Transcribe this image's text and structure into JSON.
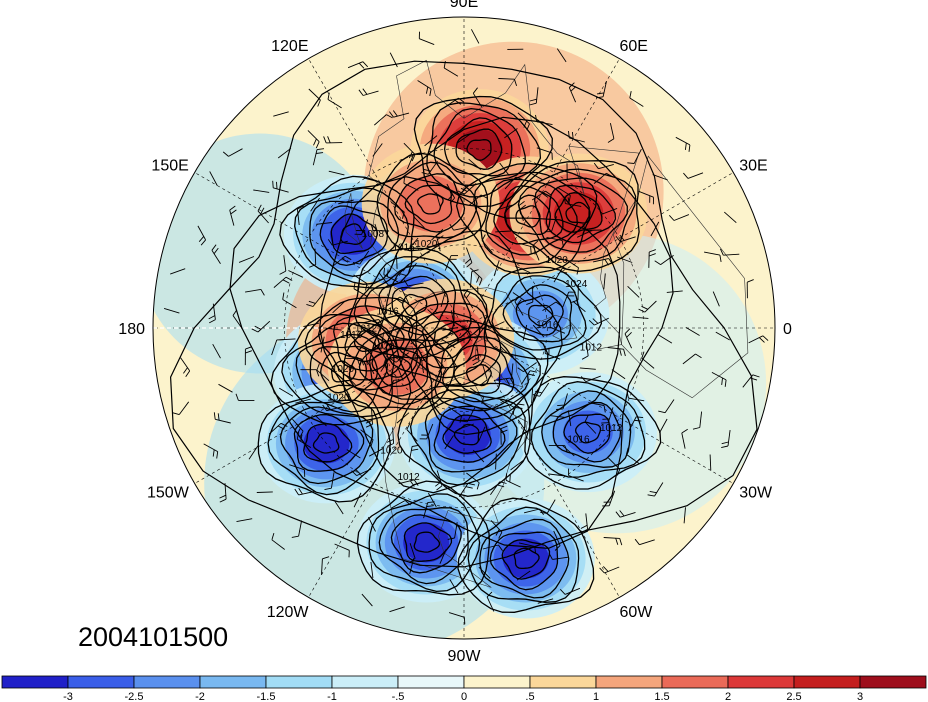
{
  "map": {
    "projection": "north-polar-stereographic",
    "field_shaded": "anomaly",
    "field_contoured": "sea-level pressure (hPa)",
    "contour_interval": 4,
    "vectors": "wind barbs",
    "date_stamp": "2004101500",
    "longitude_labels": [
      {
        "lon": 90,
        "text": "90E"
      },
      {
        "lon": 60,
        "text": "60E"
      },
      {
        "lon": 30,
        "text": "30E"
      },
      {
        "lon": 0,
        "text": "0"
      },
      {
        "lon": -30,
        "text": "30W"
      },
      {
        "lon": -60,
        "text": "60W"
      },
      {
        "lon": -90,
        "text": "90W"
      },
      {
        "lon": -120,
        "text": "120W"
      },
      {
        "lon": -150,
        "text": "150W"
      },
      {
        "lon": 180,
        "text": "180"
      },
      {
        "lon": 150,
        "text": "150E"
      },
      {
        "lon": 120,
        "text": "120E"
      }
    ],
    "contour_labels": [
      "1008",
      "1016",
      "1020",
      "1016",
      "1012",
      "1020",
      "1016",
      "1020",
      "1020",
      "1016",
      "1012",
      "1020",
      "1024",
      "1016",
      "1012",
      "1020",
      "1012"
    ],
    "anomaly_features": [
      {
        "name": "strong-negative-north-pacific",
        "sign": "negative",
        "lat": 40,
        "lon": 140,
        "intensity": -3
      },
      {
        "name": "negative-gulf-of-alaska",
        "sign": "negative",
        "lat": 45,
        "lon": -160,
        "intensity": -3
      },
      {
        "name": "negative-siberia",
        "sign": "negative",
        "lat": 70,
        "lon": 155,
        "intensity": -3
      },
      {
        "name": "negative-north-atlantic",
        "sign": "negative",
        "lat": 62,
        "lon": 10,
        "intensity": -2
      },
      {
        "name": "negative-greenland",
        "sign": "negative",
        "lat": 72,
        "lon": -72,
        "intensity": -3
      },
      {
        "name": "negative-hudson-bay",
        "sign": "negative",
        "lat": 52,
        "lon": -88,
        "intensity": -3
      },
      {
        "name": "negative-eastern-pacific",
        "sign": "negative",
        "lat": 30,
        "lon": -140,
        "intensity": -3
      },
      {
        "name": "negative-gulf-of-mexico",
        "sign": "negative",
        "lat": 20,
        "lon": -100,
        "intensity": -3
      },
      {
        "name": "negative-caribbean",
        "sign": "negative",
        "lat": 15,
        "lon": -75,
        "intensity": -3
      },
      {
        "name": "negative-subtropical-atlantic",
        "sign": "negative",
        "lat": 35,
        "lon": -40,
        "intensity": -2.5
      },
      {
        "name": "positive-india-china",
        "sign": "positive",
        "lat": 30,
        "lon": 85,
        "intensity": 3
      },
      {
        "name": "positive-central-asia",
        "sign": "positive",
        "lat": 45,
        "lon": 60,
        "intensity": 3
      },
      {
        "name": "positive-middle-east",
        "sign": "positive",
        "lat": 35,
        "lon": 45,
        "intensity": 2.5
      },
      {
        "name": "positive-bering-sea",
        "sign": "positive",
        "lat": 55,
        "lon": -172,
        "intensity": 2
      },
      {
        "name": "positive-arctic-ocean",
        "sign": "positive",
        "lat": 82,
        "lon": -150,
        "intensity": 2
      },
      {
        "name": "positive-alaska",
        "sign": "positive",
        "lat": 62,
        "lon": -150,
        "intensity": 1.5
      },
      {
        "name": "positive-mongolia",
        "sign": "positive",
        "lat": 45,
        "lon": 105,
        "intensity": 1.5
      }
    ],
    "colorbar": {
      "labels": [
        "-3",
        "-2.5",
        "-2",
        "-1.5",
        "-1",
        "-.5",
        "0",
        ".5",
        "1",
        "1.5",
        "2",
        "2.5",
        "3"
      ],
      "levels": [
        -3,
        -2.5,
        -2,
        -1.5,
        -1,
        -0.5,
        0,
        0.5,
        1,
        1.5,
        2,
        2.5,
        3
      ],
      "colors": [
        "#2020c8",
        "#3a5ee8",
        "#5a90ee",
        "#79b8f0",
        "#a2dcf5",
        "#cbeef8",
        "#e8f7f9",
        "#fcf3cc",
        "#fbd79a",
        "#f4a57c",
        "#ea6a58",
        "#dc3838",
        "#c41e1e",
        "#9e0e1c"
      ]
    }
  }
}
